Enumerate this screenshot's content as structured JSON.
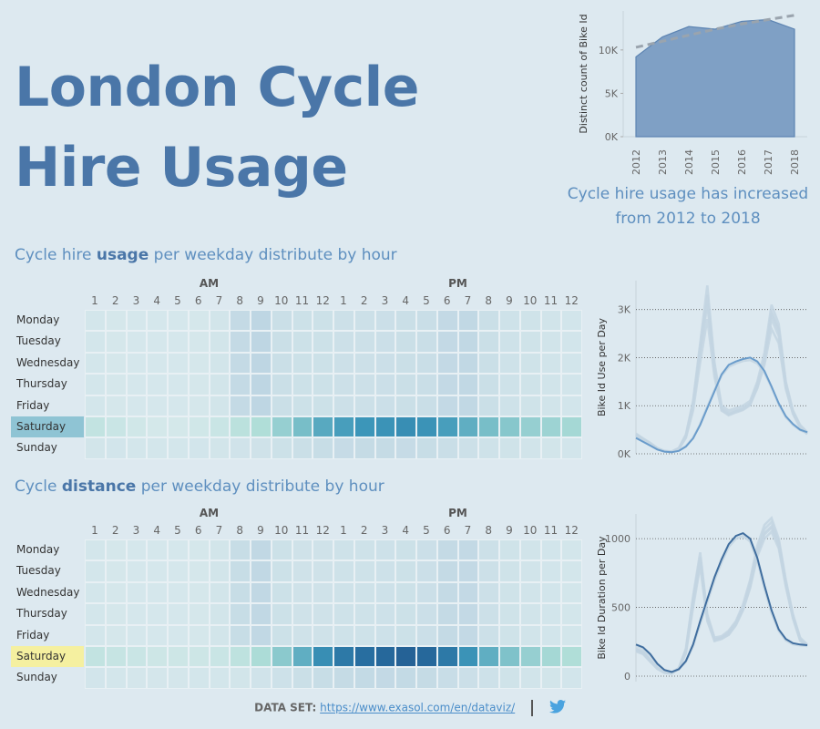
{
  "title": "London Cycle Hire Usage",
  "caption": "Cycle hire usage has increased from 2012 to 2018",
  "section1": {
    "prefix": "Cycle hire ",
    "bold": "usage",
    "suffix": " per weekday distribute by hour"
  },
  "section2": {
    "prefix": "Cycle ",
    "bold": "distance",
    "suffix": " per weekday distribute by hour"
  },
  "footer": {
    "label": "DATA SET:",
    "link": "https://www.exasol.com/en/dataviz/"
  },
  "colors": {
    "accent": "#4a76a8",
    "area": "#6e93bd",
    "trend": "#9aa4ae",
    "highlight_usage": "#8fc4d4",
    "highlight_distance": "#f5f0a0"
  },
  "icons": [
    "twitter-icon"
  ],
  "chart_data": [
    {
      "type": "area",
      "ylabel": "Distinct count of Bike Id",
      "x": [
        "2012",
        "2013",
        "2014",
        "2015",
        "2016",
        "2017",
        "2018"
      ],
      "values": [
        9200,
        11500,
        12700,
        12400,
        13300,
        13500,
        12400
      ],
      "trend": [
        10300,
        11000,
        11700,
        12400,
        13000,
        13500,
        14000
      ],
      "yticks": [
        "0K",
        "5K",
        "10K"
      ],
      "ytick_values": [
        0,
        5000,
        10000
      ],
      "ylim": [
        0,
        14500
      ]
    },
    {
      "type": "heatmap",
      "section": "usage",
      "ampm": [
        "AM",
        "PM"
      ],
      "hours": [
        "1",
        "2",
        "3",
        "4",
        "5",
        "6",
        "7",
        "8",
        "9",
        "10",
        "11",
        "12",
        "1",
        "2",
        "3",
        "4",
        "5",
        "6",
        "7",
        "8",
        "9",
        "10",
        "11",
        "12"
      ],
      "days": [
        "Monday",
        "Tuesday",
        "Wednesday",
        "Thursday",
        "Friday",
        "Saturday",
        "Sunday"
      ],
      "highlight_day": "Saturday",
      "values": [
        [
          0.24,
          0.22,
          0.21,
          0.21,
          0.21,
          0.22,
          0.26,
          0.44,
          0.52,
          0.36,
          0.33,
          0.33,
          0.34,
          0.34,
          0.35,
          0.36,
          0.38,
          0.46,
          0.48,
          0.36,
          0.31,
          0.29,
          0.27,
          0.25
        ],
        [
          0.24,
          0.22,
          0.21,
          0.21,
          0.21,
          0.22,
          0.26,
          0.44,
          0.52,
          0.36,
          0.33,
          0.33,
          0.34,
          0.34,
          0.35,
          0.36,
          0.38,
          0.46,
          0.48,
          0.36,
          0.31,
          0.29,
          0.27,
          0.25
        ],
        [
          0.24,
          0.22,
          0.21,
          0.21,
          0.21,
          0.22,
          0.26,
          0.44,
          0.52,
          0.36,
          0.33,
          0.33,
          0.34,
          0.34,
          0.35,
          0.36,
          0.38,
          0.46,
          0.48,
          0.36,
          0.31,
          0.29,
          0.27,
          0.25
        ],
        [
          0.24,
          0.22,
          0.21,
          0.21,
          0.21,
          0.22,
          0.26,
          0.44,
          0.52,
          0.36,
          0.33,
          0.33,
          0.34,
          0.34,
          0.35,
          0.36,
          0.38,
          0.46,
          0.48,
          0.36,
          0.31,
          0.29,
          0.27,
          0.25
        ],
        [
          0.24,
          0.22,
          0.21,
          0.21,
          0.21,
          0.22,
          0.26,
          0.44,
          0.52,
          0.36,
          0.33,
          0.33,
          0.34,
          0.34,
          0.35,
          0.36,
          0.38,
          0.46,
          0.48,
          0.36,
          0.31,
          0.29,
          0.27,
          0.25
        ],
        [
          0.3,
          0.28,
          0.26,
          0.25,
          0.25,
          0.26,
          0.28,
          0.32,
          0.35,
          0.42,
          0.5,
          0.58,
          0.62,
          0.65,
          0.66,
          0.68,
          0.66,
          0.62,
          0.56,
          0.5,
          0.46,
          0.42,
          0.4,
          0.38
        ],
        [
          0.26,
          0.25,
          0.24,
          0.24,
          0.24,
          0.25,
          0.26,
          0.28,
          0.3,
          0.33,
          0.36,
          0.4,
          0.42,
          0.43,
          0.43,
          0.42,
          0.4,
          0.37,
          0.34,
          0.31,
          0.29,
          0.27,
          0.26,
          0.25
        ]
      ]
    },
    {
      "type": "line",
      "ylabel": "Bike Id Use per Day",
      "yticks": [
        "0K",
        "1K",
        "2K",
        "3K"
      ],
      "ytick_values": [
        0,
        1000,
        2000,
        3000
      ],
      "ylim": [
        0,
        3600
      ],
      "highlight_index": 5,
      "series": [
        {
          "values": [
            420,
            320,
            230,
            120,
            60,
            50,
            120,
            400,
            1100,
            2300,
            3500,
            1900,
            1000,
            900,
            950,
            1000,
            1100,
            1500,
            2100,
            3100,
            2700,
            1500,
            900,
            600,
            450
          ]
        },
        {
          "values": [
            400,
            310,
            220,
            110,
            55,
            45,
            115,
            380,
            1050,
            2200,
            3300,
            1800,
            950,
            850,
            900,
            950,
            1050,
            1450,
            2000,
            2950,
            2600,
            1450,
            880,
            580,
            440
          ]
        },
        {
          "values": [
            410,
            300,
            210,
            100,
            50,
            40,
            110,
            360,
            1000,
            2150,
            3200,
            1750,
            930,
            830,
            880,
            930,
            1030,
            1400,
            1950,
            2900,
            2550,
            1400,
            860,
            560,
            430
          ]
        },
        {
          "values": [
            390,
            290,
            200,
            100,
            50,
            40,
            105,
            350,
            980,
            2100,
            3100,
            1700,
            900,
            800,
            860,
            910,
            1010,
            1380,
            1900,
            2800,
            2450,
            1380,
            840,
            550,
            420
          ]
        },
        {
          "values": [
            380,
            280,
            190,
            95,
            48,
            38,
            100,
            330,
            900,
            1900,
            2800,
            1600,
            900,
            820,
            880,
            930,
            1030,
            1360,
            1850,
            2600,
            2300,
            1350,
            830,
            540,
            410
          ]
        },
        {
          "values": [
            330,
            250,
            170,
            90,
            45,
            35,
            60,
            150,
            320,
            600,
            950,
            1300,
            1650,
            1850,
            1920,
            1970,
            2000,
            1920,
            1720,
            1400,
            1050,
            780,
            620,
            500,
            450
          ]
        },
        {
          "values": [
            370,
            280,
            190,
            100,
            55,
            40,
            70,
            160,
            330,
            620,
            980,
            1320,
            1630,
            1810,
            1880,
            1930,
            1950,
            1880,
            1690,
            1380,
            1030,
            760,
            600,
            490,
            430
          ]
        }
      ]
    },
    {
      "type": "heatmap",
      "section": "distance",
      "ampm": [
        "AM",
        "PM"
      ],
      "hours": [
        "1",
        "2",
        "3",
        "4",
        "5",
        "6",
        "7",
        "8",
        "9",
        "10",
        "11",
        "12",
        "1",
        "2",
        "3",
        "4",
        "5",
        "6",
        "7",
        "8",
        "9",
        "10",
        "11",
        "12"
      ],
      "days": [
        "Monday",
        "Tuesday",
        "Wednesday",
        "Thursday",
        "Friday",
        "Saturday",
        "Sunday"
      ],
      "highlight_day": "Saturday",
      "values": [
        [
          0.24,
          0.22,
          0.21,
          0.21,
          0.21,
          0.22,
          0.26,
          0.4,
          0.48,
          0.33,
          0.3,
          0.3,
          0.31,
          0.31,
          0.32,
          0.33,
          0.35,
          0.44,
          0.46,
          0.34,
          0.29,
          0.27,
          0.25,
          0.24
        ],
        [
          0.24,
          0.22,
          0.21,
          0.21,
          0.21,
          0.22,
          0.26,
          0.4,
          0.48,
          0.33,
          0.3,
          0.3,
          0.31,
          0.31,
          0.32,
          0.33,
          0.35,
          0.44,
          0.46,
          0.34,
          0.29,
          0.27,
          0.25,
          0.24
        ],
        [
          0.24,
          0.22,
          0.21,
          0.21,
          0.21,
          0.22,
          0.26,
          0.4,
          0.48,
          0.33,
          0.3,
          0.3,
          0.31,
          0.31,
          0.32,
          0.33,
          0.35,
          0.44,
          0.46,
          0.34,
          0.29,
          0.27,
          0.25,
          0.24
        ],
        [
          0.24,
          0.22,
          0.21,
          0.21,
          0.21,
          0.22,
          0.26,
          0.4,
          0.48,
          0.33,
          0.3,
          0.3,
          0.31,
          0.31,
          0.32,
          0.33,
          0.35,
          0.44,
          0.46,
          0.34,
          0.29,
          0.27,
          0.25,
          0.24
        ],
        [
          0.24,
          0.22,
          0.21,
          0.21,
          0.21,
          0.22,
          0.26,
          0.4,
          0.48,
          0.33,
          0.3,
          0.3,
          0.31,
          0.31,
          0.32,
          0.33,
          0.35,
          0.44,
          0.46,
          0.34,
          0.29,
          0.27,
          0.25,
          0.24
        ],
        [
          0.3,
          0.29,
          0.28,
          0.27,
          0.27,
          0.27,
          0.28,
          0.31,
          0.36,
          0.45,
          0.56,
          0.68,
          0.76,
          0.8,
          0.84,
          0.88,
          0.84,
          0.76,
          0.66,
          0.56,
          0.48,
          0.42,
          0.38,
          0.35
        ],
        [
          0.25,
          0.24,
          0.23,
          0.23,
          0.23,
          0.24,
          0.24,
          0.26,
          0.28,
          0.32,
          0.36,
          0.4,
          0.43,
          0.45,
          0.46,
          0.45,
          0.43,
          0.39,
          0.35,
          0.32,
          0.29,
          0.27,
          0.26,
          0.25
        ]
      ]
    },
    {
      "type": "line",
      "ylabel": "Bike Id Duration per Day",
      "yticks": [
        "0",
        "500",
        "1000"
      ],
      "ytick_values": [
        0,
        500,
        1000
      ],
      "ylim": [
        -40,
        1180
      ],
      "highlight_index": 5,
      "series": [
        {
          "values": [
            200,
            180,
            120,
            60,
            30,
            25,
            60,
            200,
            580,
            900,
            450,
            280,
            290,
            330,
            400,
            520,
            700,
            950,
            1100,
            1150,
            1000,
            700,
            450,
            280,
            230
          ]
        },
        {
          "values": [
            195,
            175,
            115,
            58,
            28,
            22,
            58,
            190,
            560,
            870,
            430,
            270,
            280,
            320,
            390,
            500,
            680,
            920,
            1070,
            1120,
            980,
            680,
            440,
            270,
            225
          ]
        },
        {
          "values": [
            190,
            170,
            110,
            55,
            26,
            20,
            55,
            180,
            540,
            850,
            420,
            265,
            275,
            310,
            380,
            490,
            660,
            900,
            1040,
            1090,
            960,
            670,
            430,
            265,
            220
          ]
        },
        {
          "values": [
            185,
            165,
            108,
            54,
            25,
            20,
            54,
            175,
            530,
            840,
            415,
            262,
            272,
            305,
            375,
            485,
            650,
            890,
            1030,
            1080,
            950,
            665,
            428,
            262,
            218
          ]
        },
        {
          "values": [
            180,
            160,
            105,
            52,
            24,
            19,
            52,
            165,
            500,
            800,
            400,
            255,
            270,
            300,
            370,
            480,
            640,
            870,
            1000,
            1050,
            930,
            650,
            420,
            258,
            215
          ]
        },
        {
          "values": [
            230,
            210,
            160,
            90,
            45,
            30,
            50,
            110,
            230,
            400,
            560,
            720,
            850,
            960,
            1020,
            1040,
            1000,
            860,
            660,
            480,
            340,
            270,
            240,
            230,
            225
          ]
        },
        {
          "values": [
            220,
            200,
            150,
            85,
            42,
            28,
            48,
            105,
            220,
            380,
            540,
            700,
            830,
            940,
            1000,
            1020,
            980,
            840,
            640,
            460,
            330,
            260,
            232,
            224,
            220
          ]
        }
      ]
    }
  ]
}
